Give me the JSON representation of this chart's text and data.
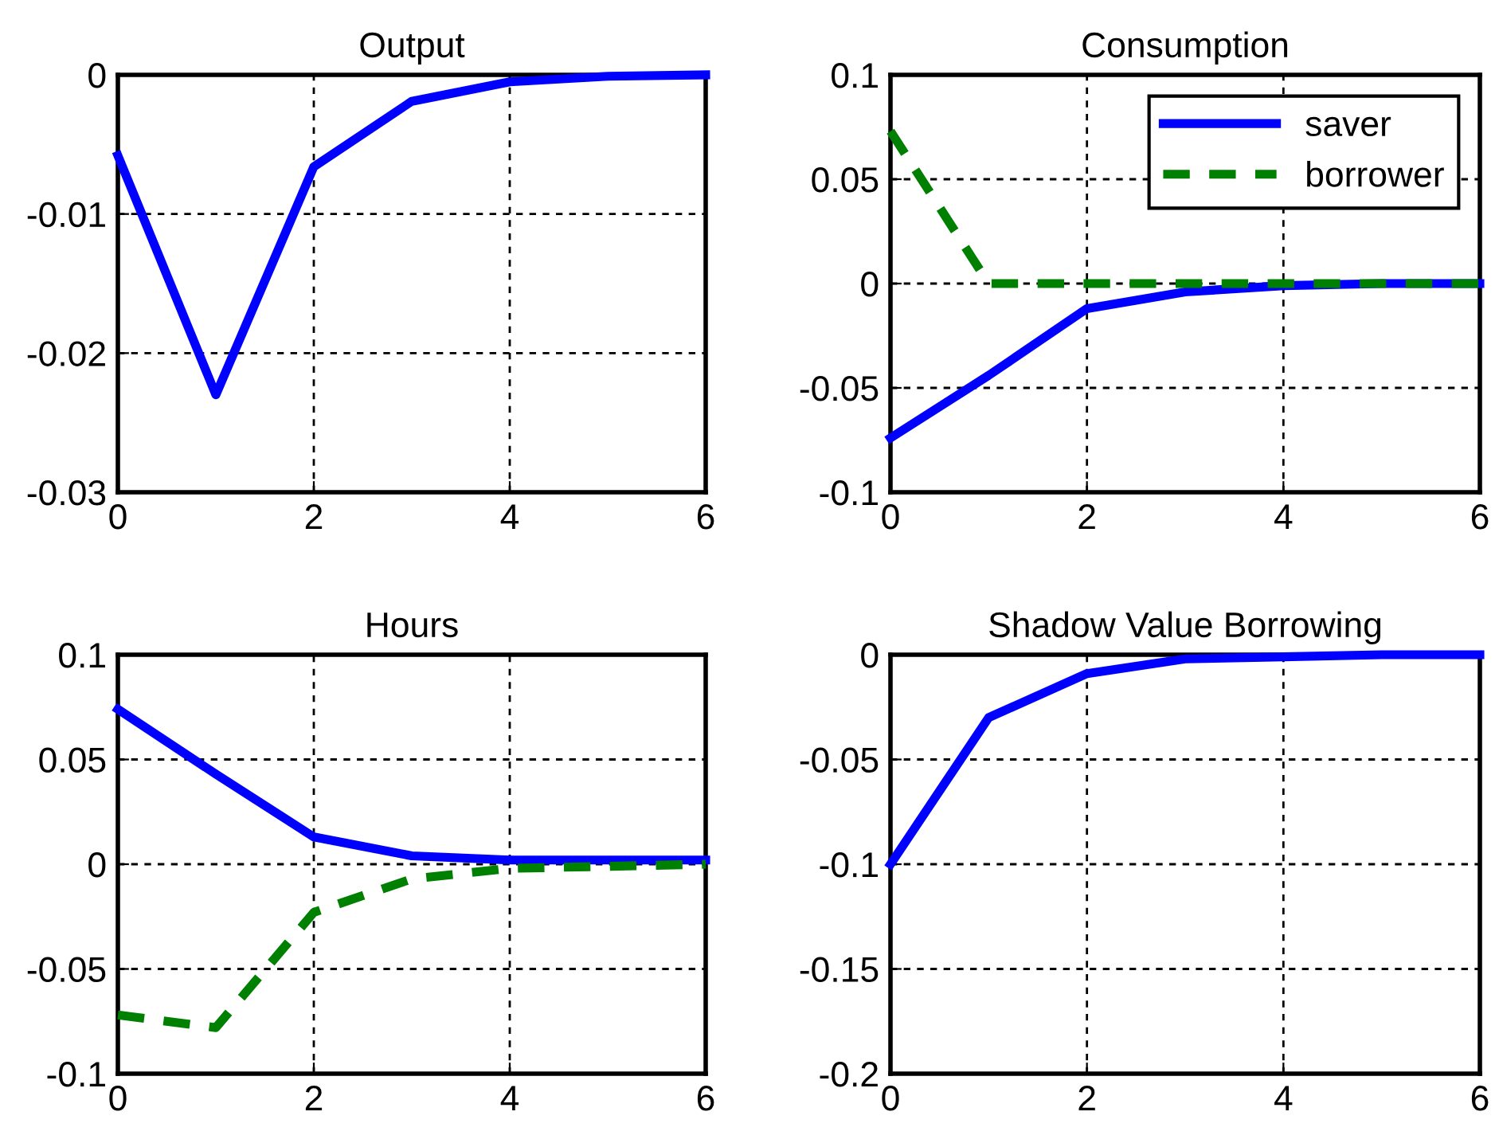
{
  "chart_data": [
    {
      "type": "line",
      "title": "Output",
      "x": [
        0,
        1,
        2,
        3,
        4,
        5,
        6
      ],
      "xlim": [
        0,
        6
      ],
      "xticks": [
        0,
        2,
        4,
        6
      ],
      "ylim": [
        -0.03,
        0
      ],
      "yticks": [
        -0.03,
        -0.02,
        -0.01,
        0
      ],
      "grid": true,
      "line_style": "solid",
      "series": [
        {
          "color": "#0000ff",
          "values": [
            -0.0058,
            -0.023,
            -0.0066,
            -0.0019,
            -0.0005,
            -0.0001,
            0
          ]
        }
      ]
    },
    {
      "type": "line",
      "title": "Consumption",
      "x": [
        0,
        1,
        2,
        3,
        4,
        5,
        6
      ],
      "xlim": [
        0,
        6
      ],
      "xticks": [
        0,
        2,
        4,
        6
      ],
      "ylim": [
        -0.1,
        0.1
      ],
      "yticks": [
        -0.1,
        -0.05,
        0,
        0.05,
        0.1
      ],
      "grid": true,
      "legend": "top right",
      "series": [
        {
          "name": "saver",
          "color": "#0000ff",
          "line_style": "solid",
          "values": [
            -0.074,
            -0.044,
            -0.012,
            -0.004,
            -0.001,
            0,
            0
          ]
        },
        {
          "name": "borrower",
          "color": "#008000",
          "line_style": "dashed",
          "values": [
            0.073,
            0,
            0,
            0,
            0,
            0,
            0
          ]
        }
      ]
    },
    {
      "type": "line",
      "title": "Hours",
      "x": [
        0,
        1,
        2,
        3,
        4,
        5,
        6
      ],
      "xlim": [
        0,
        6
      ],
      "xticks": [
        0,
        2,
        4,
        6
      ],
      "ylim": [
        -0.1,
        0.1
      ],
      "yticks": [
        -0.1,
        -0.05,
        0,
        0.05,
        0.1
      ],
      "grid": true,
      "series": [
        {
          "color": "#0000ff",
          "line_style": "solid",
          "values": [
            0.074,
            0.043,
            0.013,
            0.004,
            0.002,
            0.002,
            0.002
          ]
        },
        {
          "color": "#008000",
          "line_style": "dashed",
          "values": [
            -0.072,
            -0.078,
            -0.023,
            -0.007,
            -0.002,
            -0.001,
            0
          ]
        }
      ]
    },
    {
      "type": "line",
      "title": "Shadow Value Borrowing",
      "x": [
        0,
        1,
        2,
        3,
        4,
        5,
        6
      ],
      "xlim": [
        0,
        6
      ],
      "xticks": [
        0,
        2,
        4,
        6
      ],
      "ylim": [
        -0.2,
        0
      ],
      "yticks": [
        -0.2,
        -0.15,
        -0.1,
        -0.05,
        0
      ],
      "grid": true,
      "line_style": "solid",
      "series": [
        {
          "color": "#0000ff",
          "values": [
            -0.1,
            -0.03,
            -0.009,
            -0.002,
            -0.001,
            0,
            0
          ]
        }
      ]
    }
  ]
}
